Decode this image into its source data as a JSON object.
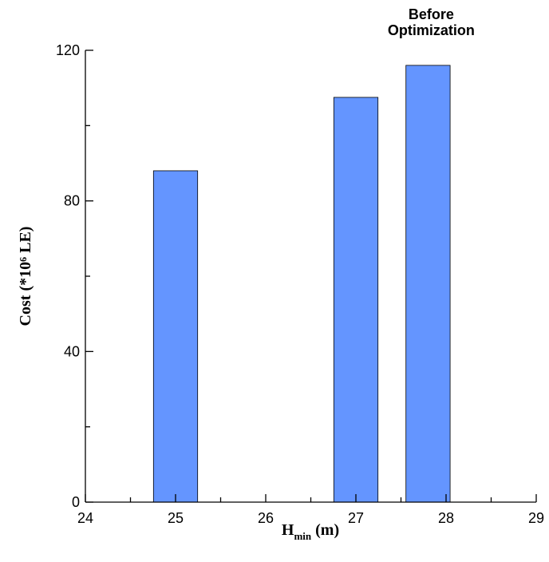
{
  "chart_data": {
    "type": "bar",
    "annotation": [
      "Before",
      "Optimization"
    ],
    "xlabel": [
      "H",
      "min",
      "(m)"
    ],
    "ylabel": "Cost (*10⁶ LE)",
    "x": [
      25,
      27,
      27.8
    ],
    "values": [
      88,
      107.5,
      116
    ],
    "color": "#6495ff",
    "xlim": [
      24,
      29
    ],
    "xticks": [
      24,
      25,
      26,
      27,
      28,
      29
    ],
    "ylim": [
      0,
      120
    ],
    "yticks": [
      0,
      40,
      80,
      120
    ]
  }
}
